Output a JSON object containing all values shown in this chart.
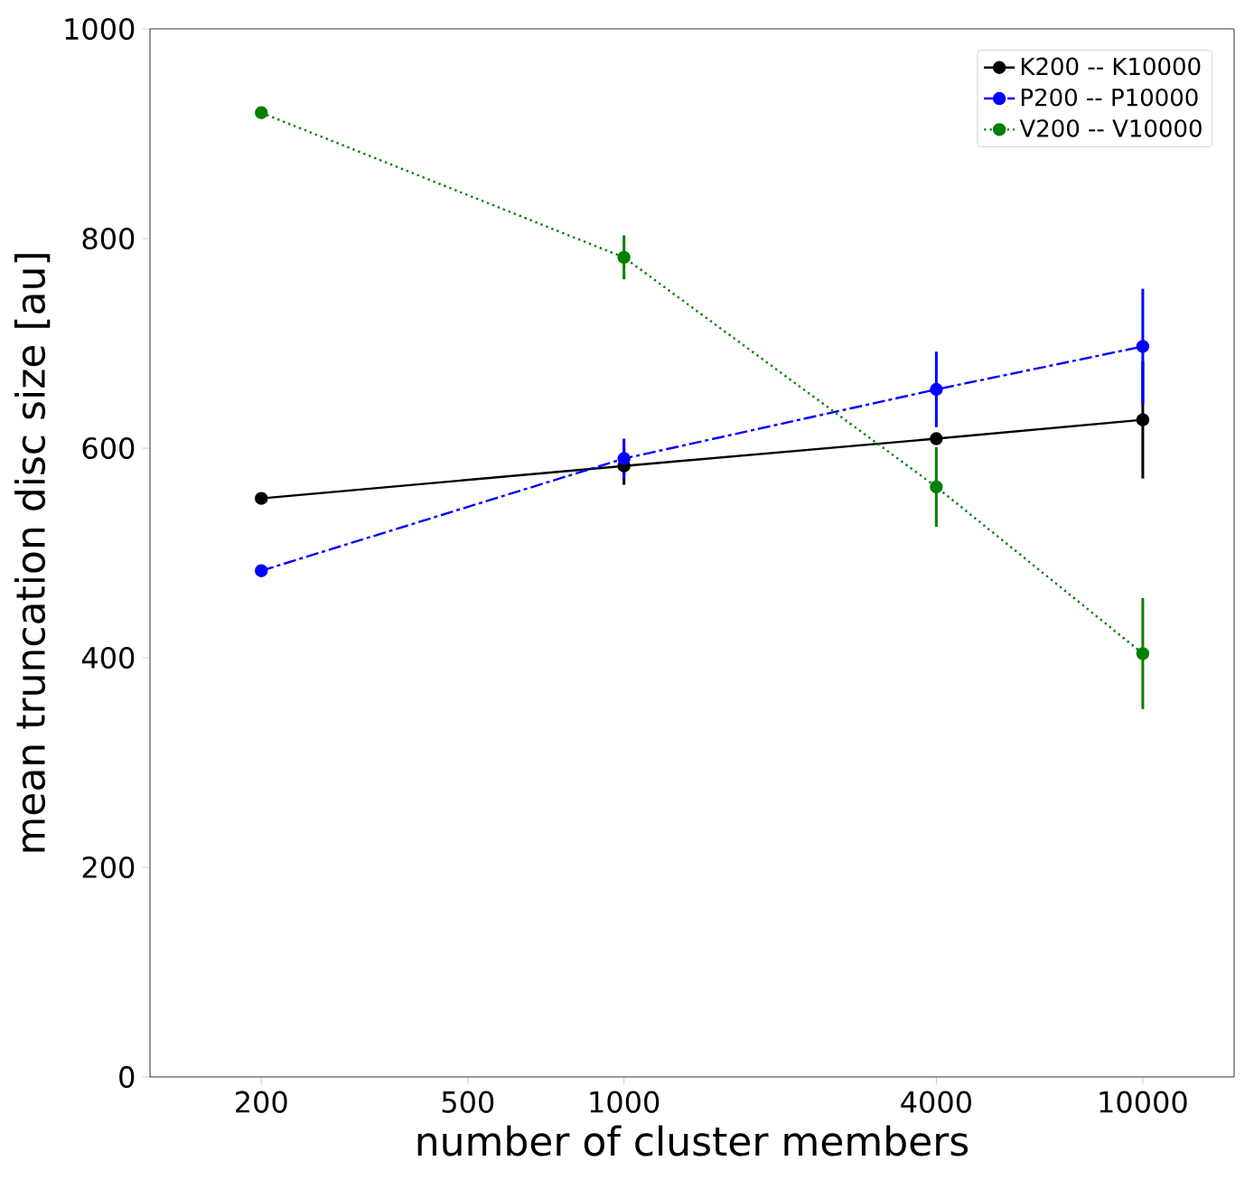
{
  "chart_data": {
    "type": "line",
    "xlabel": "number of cluster members",
    "ylabel": "mean truncation disc size [au]",
    "log": "x",
    "x": [
      200,
      1000,
      4000,
      10000
    ],
    "xlim": [
      122,
      15000
    ],
    "ylim": [
      0,
      1000
    ],
    "xticks": [
      200,
      500,
      1000,
      4000,
      10000
    ],
    "yticks": [
      0,
      200,
      400,
      600,
      800,
      1000
    ],
    "legend": "top right",
    "marker": "circle",
    "grid": false,
    "series": [
      {
        "name": "K200 -- K10000",
        "color": "#000000",
        "line_style": "solid",
        "values": [
          552,
          583,
          609,
          627
        ],
        "errors": [
          null,
          18,
          null,
          56
        ]
      },
      {
        "name": "P200 -- P10000",
        "color": "#0000ff",
        "line_style": "dashdot",
        "values": [
          483,
          590,
          656,
          697
        ],
        "errors": [
          null,
          19,
          36,
          55
        ]
      },
      {
        "name": "V200 -- V10000",
        "color": "#008000",
        "line_style": "dotted",
        "values": [
          920,
          782,
          563,
          404
        ],
        "errors": [
          null,
          21,
          38,
          53
        ]
      }
    ]
  }
}
